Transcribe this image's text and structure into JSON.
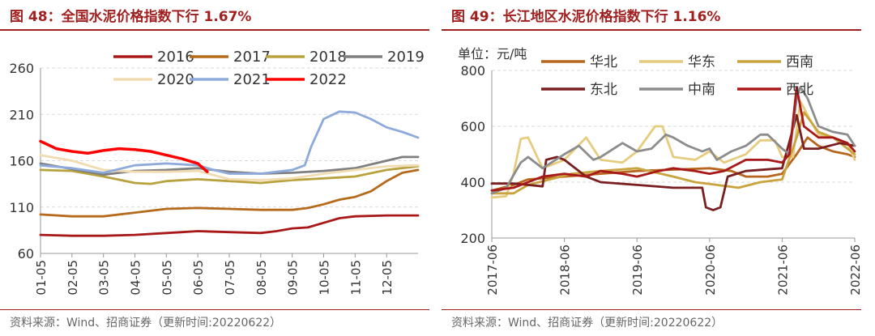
{
  "colors": {
    "title": "#a0201f",
    "grid": "#d9d9d9",
    "axis": "#999999",
    "text": "#333333",
    "source": "#666666"
  },
  "left": {
    "title": "图 48：全国水泥价格指数下行 1.67%",
    "source": "资料来源：Wind、招商证券（更新时间:20220622）"
  },
  "right": {
    "title": "图 49：长江地区水泥价格指数下行 1.16%",
    "unit": "单位：元/吨",
    "source": "资料来源：Wind、招商证券（更新时间:20220622）"
  },
  "chart_data": [
    {
      "type": "line",
      "title": "全国水泥价格指数",
      "xlabel": "",
      "ylabel": "",
      "ylim": [
        60,
        260
      ],
      "yticks": [
        60,
        110,
        160,
        210,
        260
      ],
      "xlim": [
        1,
        13
      ],
      "x_ticks": [
        1,
        2,
        3,
        4,
        5,
        6,
        7,
        8,
        9,
        10,
        11,
        12
      ],
      "x_tick_labels": [
        "01-05",
        "02-05",
        "03-05",
        "04-05",
        "05-05",
        "06-05",
        "07-05",
        "08-05",
        "09-05",
        "10-05",
        "11-05",
        "12-05"
      ],
      "legend": "top",
      "series": [
        {
          "name": "2016",
          "color": "#a81818",
          "x": [
            1,
            2,
            3,
            4,
            5,
            5.5,
            6,
            7,
            8,
            8.5,
            9,
            9.5,
            10,
            10.5,
            11,
            12,
            13
          ],
          "values": [
            80,
            79,
            79,
            80,
            82,
            83,
            84,
            83,
            82,
            84,
            87,
            88,
            93,
            98,
            100,
            101,
            101
          ]
        },
        {
          "name": "2017",
          "color": "#b56a1c",
          "x": [
            1,
            2,
            3,
            4,
            5,
            6,
            7,
            8,
            9,
            9.5,
            10,
            10.5,
            11,
            11.5,
            12,
            12.5,
            13
          ],
          "values": [
            102,
            100,
            100,
            104,
            108,
            109,
            108,
            107,
            107,
            109,
            113,
            118,
            121,
            127,
            138,
            147,
            150
          ]
        },
        {
          "name": "2018",
          "color": "#b8a23e",
          "x": [
            1,
            2,
            3,
            4,
            4.5,
            5,
            6,
            7,
            8,
            9,
            10,
            11,
            12,
            13
          ],
          "values": [
            150,
            149,
            143,
            136,
            135,
            138,
            140,
            138,
            136,
            139,
            141,
            143,
            150,
            154
          ]
        },
        {
          "name": "2019",
          "color": "#7f7f7f",
          "x": [
            1,
            2,
            3,
            4,
            5,
            6,
            7,
            8,
            9,
            10,
            11,
            12,
            12.5,
            13
          ],
          "values": [
            157,
            151,
            145,
            149,
            150,
            152,
            148,
            146,
            147,
            149,
            152,
            160,
            164,
            164
          ]
        },
        {
          "name": "2020",
          "color": "#f1dcb2",
          "x": [
            1,
            2,
            3,
            4,
            5,
            6,
            7,
            8,
            9,
            10,
            11,
            12,
            13
          ],
          "values": [
            166,
            160,
            150,
            148,
            148,
            149,
            140,
            139,
            141,
            146,
            150,
            154,
            155
          ]
        },
        {
          "name": "2021",
          "color": "#8eaadb",
          "x": [
            1,
            2,
            3,
            4,
            5,
            6,
            6.5,
            7,
            8,
            8.5,
            9,
            9.4,
            9.6,
            10,
            10.5,
            11,
            11.5,
            12,
            12.5,
            13
          ],
          "values": [
            155,
            152,
            147,
            155,
            157,
            155,
            150,
            146,
            146,
            148,
            150,
            155,
            175,
            205,
            213,
            212,
            205,
            196,
            191,
            185
          ]
        },
        {
          "name": "2022",
          "color": "#ff0000",
          "x": [
            1,
            1.5,
            2,
            2.5,
            3,
            3.5,
            4,
            4.5,
            5,
            5.5,
            6,
            6.3
          ],
          "values": [
            181,
            173,
            170,
            168,
            171,
            173,
            172,
            170,
            166,
            162,
            157,
            148
          ]
        }
      ]
    },
    {
      "type": "line",
      "title": "长江地区水泥价格指数",
      "xlabel": "",
      "ylabel": "元/吨",
      "ylim": [
        200,
        800
      ],
      "yticks": [
        200,
        400,
        600,
        800
      ],
      "xlim": [
        2017.5,
        2022.5
      ],
      "x_ticks": [
        2017.5,
        2018.5,
        2019.5,
        2020.5,
        2021.5,
        2022.5
      ],
      "x_tick_labels": [
        "2017-06",
        "2018-06",
        "2019-06",
        "2020-06",
        "2021-06",
        "2022-06"
      ],
      "legend": "top",
      "series": [
        {
          "name": "华北",
          "color": "#b8651d",
          "x": [
            2017.5,
            2017.8,
            2018.0,
            2018.5,
            2019.0,
            2019.5,
            2020.0,
            2020.5,
            2020.8,
            2021.0,
            2021.3,
            2021.5,
            2021.7,
            2021.85,
            2022.0,
            2022.2,
            2022.4,
            2022.5
          ],
          "values": [
            370,
            390,
            410,
            420,
            430,
            440,
            445,
            450,
            440,
            420,
            420,
            430,
            500,
            560,
            530,
            510,
            500,
            490
          ]
        },
        {
          "name": "华东",
          "color": "#e6cc7e",
          "x": [
            2017.5,
            2017.7,
            2017.8,
            2017.9,
            2018.0,
            2018.2,
            2018.5,
            2018.8,
            2019.0,
            2019.3,
            2019.5,
            2019.75,
            2019.85,
            2020.0,
            2020.3,
            2020.5,
            2020.7,
            2020.8,
            2021.0,
            2021.2,
            2021.4,
            2021.5,
            2021.65,
            2021.75,
            2021.85,
            2022.0,
            2022.2,
            2022.4,
            2022.5
          ],
          "values": [
            345,
            350,
            430,
            555,
            560,
            450,
            480,
            560,
            480,
            470,
            510,
            600,
            600,
            490,
            480,
            510,
            470,
            480,
            500,
            550,
            550,
            490,
            490,
            690,
            640,
            570,
            560,
            540,
            480
          ]
        },
        {
          "name": "西南",
          "color": "#c9a33d",
          "x": [
            2017.5,
            2017.8,
            2018.0,
            2018.3,
            2018.6,
            2019.0,
            2019.5,
            2020.0,
            2020.3,
            2020.6,
            2020.9,
            2021.2,
            2021.5,
            2021.7,
            2021.8,
            2022.0,
            2022.2,
            2022.5
          ],
          "values": [
            360,
            360,
            390,
            410,
            430,
            440,
            450,
            420,
            400,
            390,
            380,
            400,
            410,
            560,
            650,
            580,
            560,
            500
          ]
        },
        {
          "name": "东北",
          "color": "#7a1f1f",
          "x": [
            2017.5,
            2017.8,
            2018.0,
            2018.2,
            2018.25,
            2018.4,
            2018.5,
            2018.8,
            2019.0,
            2019.5,
            2020.0,
            2020.4,
            2020.45,
            2020.55,
            2020.65,
            2020.75,
            2021.0,
            2021.5,
            2021.7,
            2021.8,
            2022.0,
            2022.3,
            2022.5
          ],
          "values": [
            395,
            395,
            390,
            385,
            480,
            490,
            480,
            420,
            400,
            390,
            380,
            380,
            310,
            300,
            310,
            420,
            440,
            450,
            640,
            520,
            520,
            540,
            530
          ]
        },
        {
          "name": "中南",
          "color": "#8c8c8c",
          "x": [
            2017.5,
            2017.7,
            2017.9,
            2018.0,
            2018.2,
            2018.5,
            2018.7,
            2018.9,
            2019.0,
            2019.3,
            2019.5,
            2019.7,
            2019.9,
            2020.0,
            2020.2,
            2020.4,
            2020.5,
            2020.6,
            2020.8,
            2021.0,
            2021.2,
            2021.3,
            2021.5,
            2021.6,
            2021.7,
            2021.75,
            2021.85,
            2022.0,
            2022.2,
            2022.4,
            2022.5
          ],
          "values": [
            360,
            380,
            470,
            490,
            450,
            500,
            530,
            480,
            490,
            540,
            510,
            520,
            570,
            560,
            530,
            510,
            520,
            480,
            510,
            530,
            570,
            570,
            520,
            500,
            700,
            740,
            700,
            600,
            580,
            570,
            530
          ]
        },
        {
          "name": "西北",
          "color": "#a81818",
          "x": [
            2017.5,
            2017.8,
            2018.0,
            2018.2,
            2018.5,
            2018.8,
            2019.0,
            2019.3,
            2019.5,
            2019.8,
            2020.0,
            2020.3,
            2020.5,
            2020.7,
            2021.0,
            2021.3,
            2021.5,
            2021.6,
            2021.7,
            2021.8,
            2022.0,
            2022.2,
            2022.4,
            2022.5
          ],
          "values": [
            370,
            380,
            400,
            420,
            430,
            420,
            440,
            430,
            420,
            440,
            450,
            440,
            430,
            440,
            480,
            480,
            470,
            500,
            740,
            600,
            560,
            560,
            540,
            510
          ]
        }
      ]
    }
  ]
}
